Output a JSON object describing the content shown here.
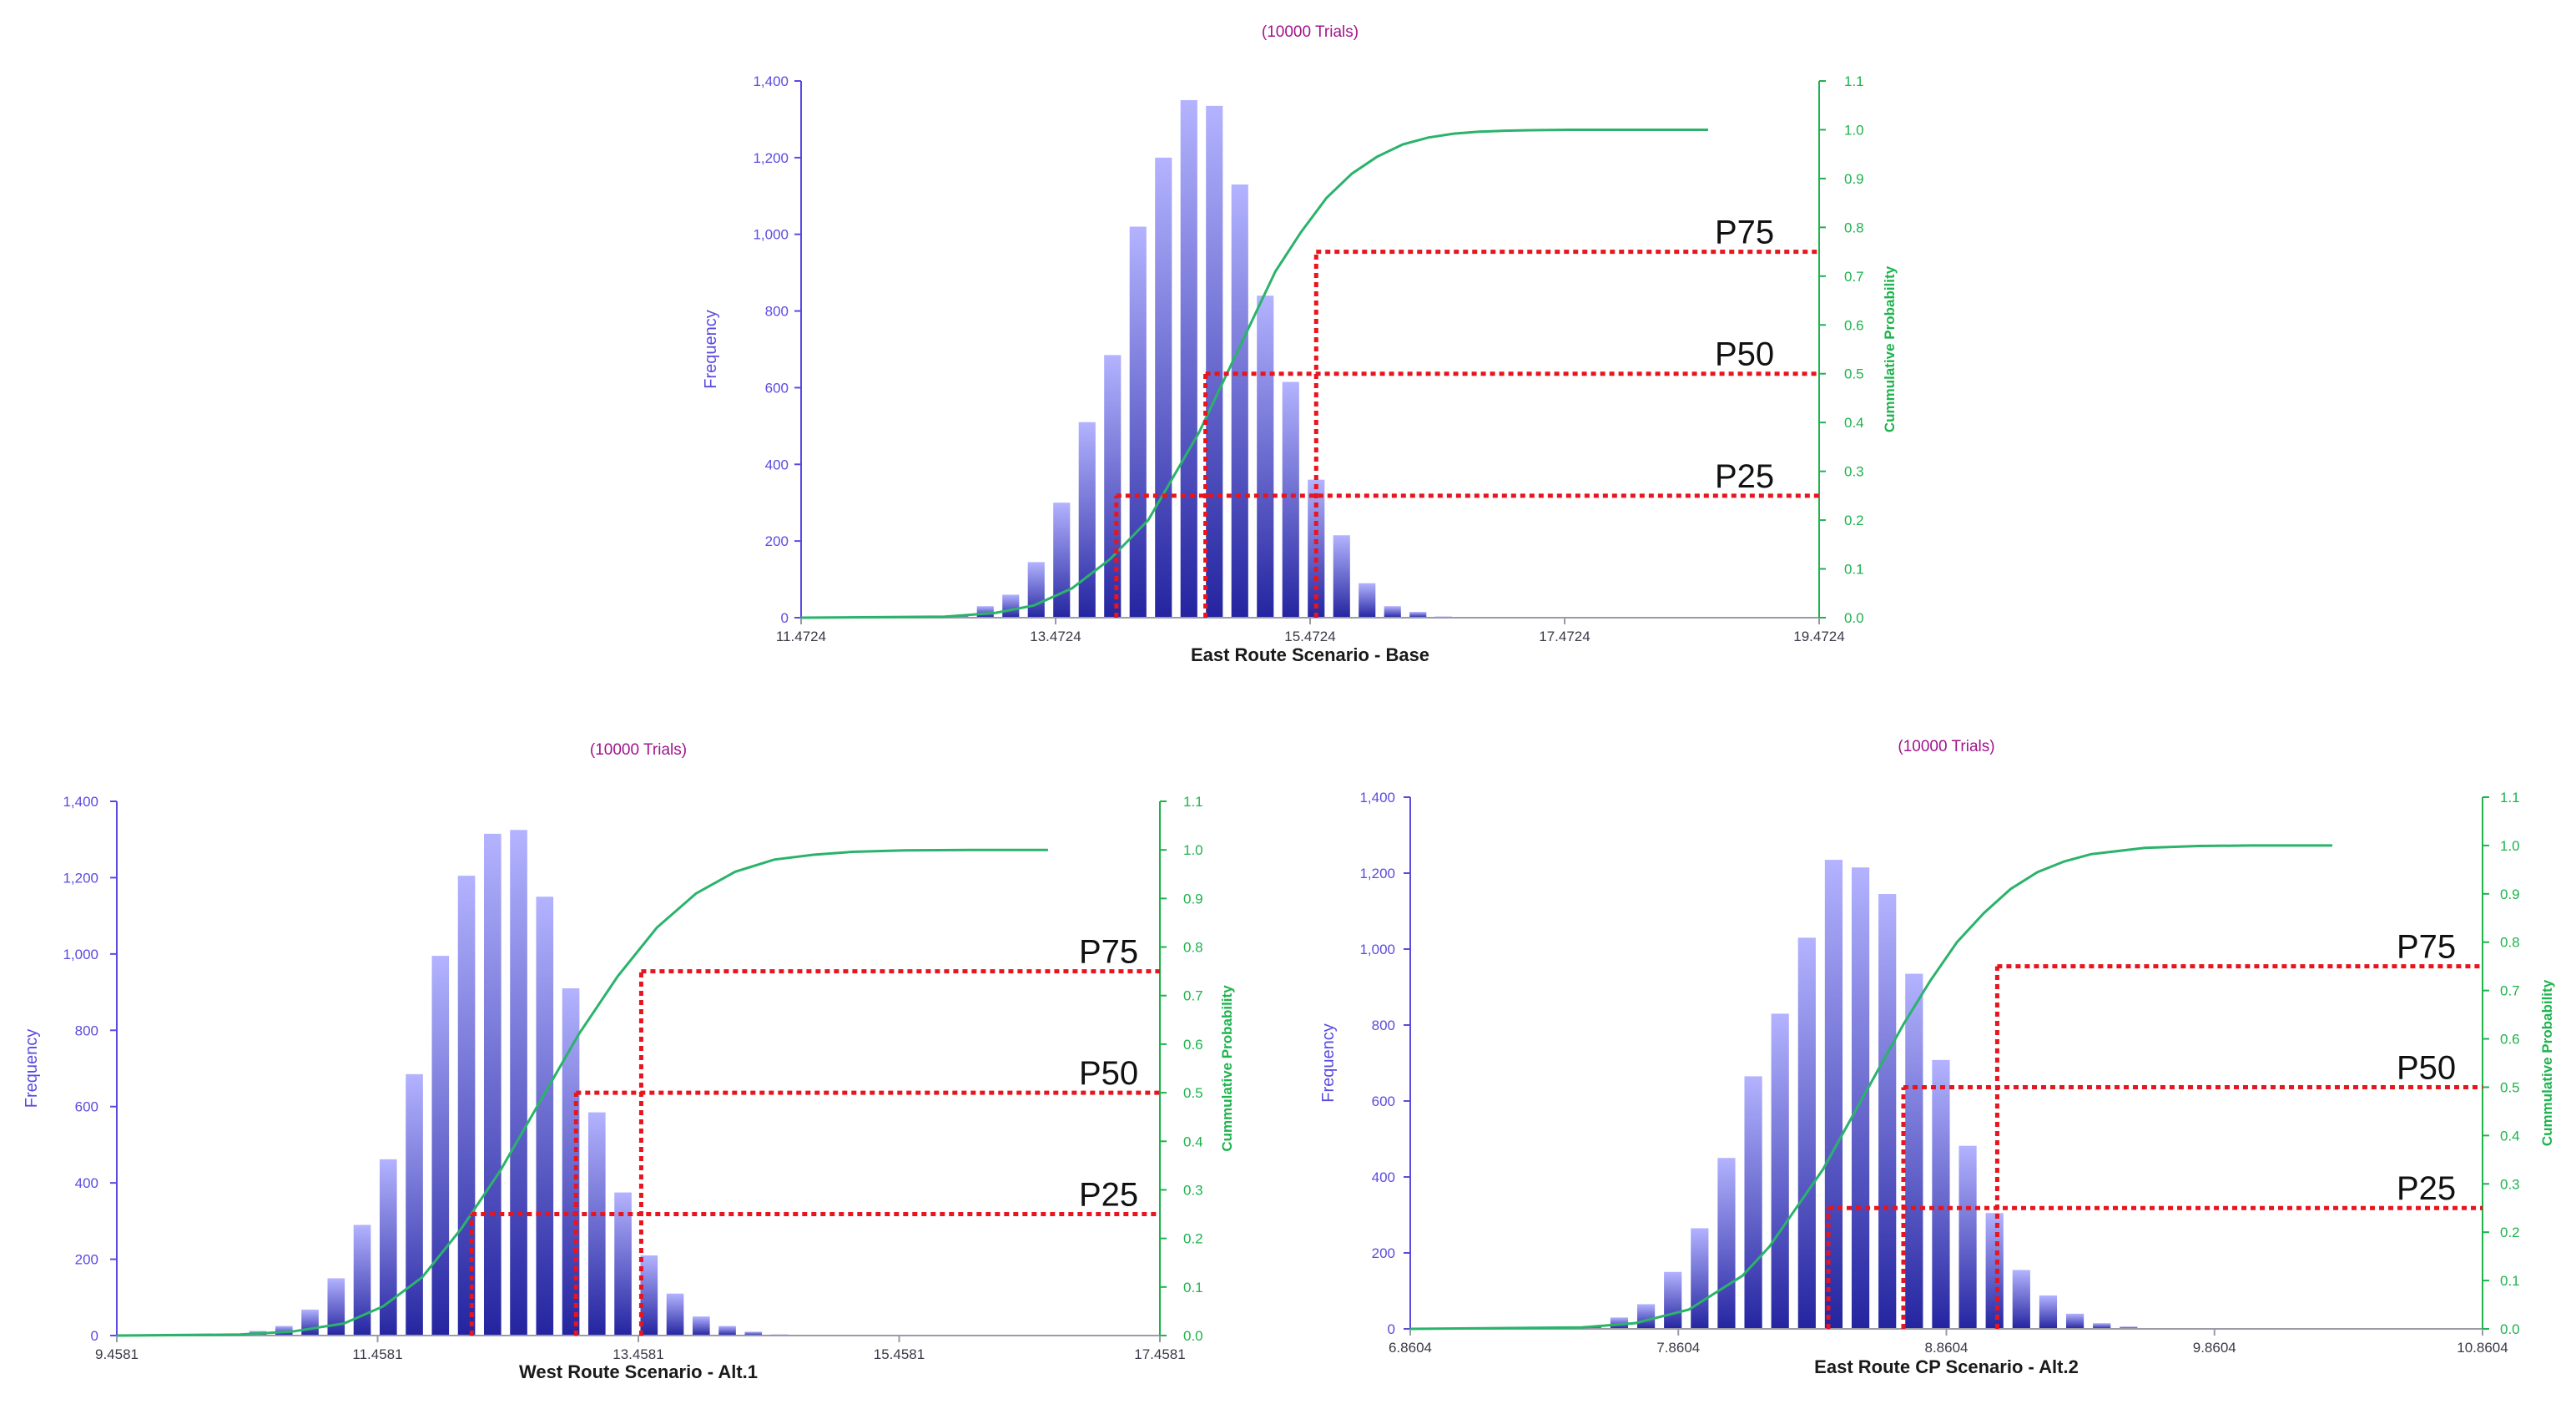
{
  "colors": {
    "bar_light": "#b3b3ff",
    "bar_dark": "#2424a0",
    "cumulative_line": "#2bb36b",
    "left_axis": "#5a4be0",
    "right_axis": "#1db34d",
    "percentile_line": "#e8141e",
    "trials_label": "#a0148c"
  },
  "chart_data": [
    {
      "type": "bar",
      "name": "chart-top",
      "trials_label": "(10000 Trials)",
      "xlabel": "East Route Scenario - Base",
      "ylabel": "Frequency",
      "y2label": "Cummulative Probability",
      "xlim": [
        11.4724,
        19.4724
      ],
      "ylim": [
        0,
        1400
      ],
      "y2lim": [
        0,
        1.1
      ],
      "x_ticks": [
        11.4724,
        13.4724,
        15.4724,
        17.4724,
        19.4724
      ],
      "x_tick_labels": [
        "11.4724",
        "13.4724",
        "15.4724",
        "17.4724",
        "19.4724"
      ],
      "y_ticks": [
        0,
        200,
        400,
        600,
        800,
        1000,
        1200,
        1400
      ],
      "y_tick_labels": [
        "0",
        "200",
        "400",
        "600",
        "800",
        "1,000",
        "1,200",
        "1,400"
      ],
      "y2_ticks": [
        0,
        0.1,
        0.2,
        0.3,
        0.4,
        0.5,
        0.6,
        0.7,
        0.8,
        0.9,
        1.0,
        1.1
      ],
      "y2_tick_labels": [
        "0.0",
        "0.1",
        "0.2",
        "0.3",
        "0.4",
        "0.5",
        "0.6",
        "0.7",
        "0.8",
        "0.9",
        "1.0",
        "1.1"
      ],
      "bin_width": 0.2,
      "bin_centers": [
        12.72,
        12.92,
        13.12,
        13.32,
        13.52,
        13.72,
        13.92,
        14.12,
        14.32,
        14.52,
        14.72,
        14.92,
        15.12,
        15.32,
        15.52,
        15.72,
        15.92,
        16.12,
        16.32,
        16.52,
        16.72,
        16.92,
        17.12,
        17.32
      ],
      "frequencies": [
        5,
        30,
        60,
        145,
        300,
        510,
        685,
        1020,
        1200,
        1350,
        1335,
        1130,
        840,
        615,
        360,
        215,
        90,
        30,
        15,
        3,
        1,
        0,
        0,
        0
      ],
      "cumulative_x": [
        11.4724,
        12.6,
        13.0,
        13.3,
        13.6,
        13.9,
        14.2,
        14.4,
        14.6,
        14.8,
        15.0,
        15.2,
        15.4,
        15.6,
        15.8,
        16.0,
        16.2,
        16.4,
        16.6,
        16.8,
        17.0,
        17.2,
        17.5,
        17.8,
        18.2,
        18.6
      ],
      "cumulative_y": [
        0.0,
        0.002,
        0.01,
        0.025,
        0.06,
        0.12,
        0.2,
        0.29,
        0.38,
        0.49,
        0.6,
        0.71,
        0.79,
        0.86,
        0.91,
        0.945,
        0.97,
        0.984,
        0.992,
        0.996,
        0.998,
        0.999,
        1.0,
        1.0,
        1.0,
        1.0
      ],
      "percentiles": [
        {
          "label": "P75",
          "x": 15.52,
          "y": 0.75
        },
        {
          "label": "P50",
          "x": 14.65,
          "y": 0.5
        },
        {
          "label": "P25",
          "x": 13.95,
          "y": 0.25
        }
      ]
    },
    {
      "type": "bar",
      "name": "chart-bottom-left",
      "trials_label": "(10000 Trials)",
      "xlabel": "West Route Scenario - Alt.1",
      "ylabel": "Frequency",
      "y2label": "Cummulative Probability",
      "xlim": [
        9.4581,
        17.4581
      ],
      "ylim": [
        0,
        1400
      ],
      "y2lim": [
        0,
        1.1
      ],
      "x_ticks": [
        9.4581,
        11.4581,
        13.4581,
        15.4581,
        17.4581
      ],
      "x_tick_labels": [
        "9.4581",
        "11.4581",
        "13.4581",
        "15.4581",
        "17.4581"
      ],
      "y_ticks": [
        0,
        200,
        400,
        600,
        800,
        1000,
        1200,
        1400
      ],
      "y_tick_labels": [
        "0",
        "200",
        "400",
        "600",
        "800",
        "1,000",
        "1,200",
        "1,400"
      ],
      "y2_ticks": [
        0,
        0.1,
        0.2,
        0.3,
        0.4,
        0.5,
        0.6,
        0.7,
        0.8,
        0.9,
        1.0,
        1.1
      ],
      "y2_tick_labels": [
        "0.0",
        "0.1",
        "0.2",
        "0.3",
        "0.4",
        "0.5",
        "0.6",
        "0.7",
        "0.8",
        "0.9",
        "1.0",
        "1.1"
      ],
      "bin_width": 0.2,
      "bin_centers": [
        10.34,
        10.54,
        10.74,
        10.94,
        11.14,
        11.34,
        11.54,
        11.74,
        11.94,
        12.14,
        12.34,
        12.54,
        12.74,
        12.94,
        13.14,
        13.34,
        13.54,
        13.74,
        13.94,
        14.14,
        14.34,
        14.54,
        14.74,
        14.94,
        15.14
      ],
      "frequencies": [
        5,
        12,
        25,
        68,
        150,
        290,
        462,
        685,
        995,
        1205,
        1315,
        1325,
        1150,
        910,
        585,
        375,
        210,
        110,
        50,
        25,
        10,
        3,
        0,
        0,
        0
      ],
      "cumulative_x": [
        9.4581,
        10.4,
        10.8,
        11.2,
        11.5,
        11.8,
        12.1,
        12.4,
        12.7,
        13.0,
        13.3,
        13.6,
        13.9,
        14.2,
        14.5,
        14.8,
        15.1,
        15.5,
        16.0,
        16.6
      ],
      "cumulative_y": [
        0.0,
        0.002,
        0.008,
        0.025,
        0.06,
        0.12,
        0.22,
        0.34,
        0.48,
        0.62,
        0.74,
        0.84,
        0.91,
        0.955,
        0.98,
        0.99,
        0.996,
        0.999,
        1.0,
        1.0
      ],
      "percentiles": [
        {
          "label": "P75",
          "x": 13.48,
          "y": 0.75
        },
        {
          "label": "P50",
          "x": 12.98,
          "y": 0.5
        },
        {
          "label": "P25",
          "x": 12.18,
          "y": 0.25
        }
      ]
    },
    {
      "type": "bar",
      "name": "chart-bottom-right",
      "trials_label": "(10000 Trials)",
      "xlabel": "East Route CP Scenario - Alt.2",
      "ylabel": "Frequency",
      "y2label": "Cummulative Probability",
      "xlim": [
        6.8604,
        10.8604
      ],
      "ylim": [
        0,
        1400
      ],
      "y2lim": [
        0,
        1.1
      ],
      "x_ticks": [
        6.8604,
        7.8604,
        8.8604,
        9.8604,
        10.8604
      ],
      "x_tick_labels": [
        "6.8604",
        "7.8604",
        "8.8604",
        "9.8604",
        "10.8604"
      ],
      "y_ticks": [
        0,
        200,
        400,
        600,
        800,
        1000,
        1200,
        1400
      ],
      "y_tick_labels": [
        "0",
        "200",
        "400",
        "600",
        "800",
        "1,000",
        "1,200",
        "1,400"
      ],
      "y2_ticks": [
        0,
        0.1,
        0.2,
        0.3,
        0.4,
        0.5,
        0.6,
        0.7,
        0.8,
        0.9,
        1.0,
        1.1
      ],
      "y2_tick_labels": [
        "0.0",
        "0.1",
        "0.2",
        "0.3",
        "0.4",
        "0.5",
        "0.6",
        "0.7",
        "0.8",
        "0.9",
        "1.0",
        "1.1"
      ],
      "bin_width": 0.1,
      "bin_centers": [
        7.44,
        7.54,
        7.64,
        7.74,
        7.84,
        7.94,
        8.04,
        8.14,
        8.24,
        8.34,
        8.44,
        8.54,
        8.64,
        8.74,
        8.84,
        8.94,
        9.04,
        9.14,
        9.24,
        9.34,
        9.44,
        9.54,
        9.64,
        9.74,
        9.84,
        9.94,
        10.04
      ],
      "frequencies": [
        4,
        8,
        30,
        65,
        150,
        265,
        450,
        665,
        830,
        1030,
        1235,
        1215,
        1145,
        935,
        708,
        482,
        305,
        155,
        88,
        40,
        15,
        6,
        2,
        0,
        0,
        0,
        0
      ],
      "cumulative_x": [
        6.8604,
        7.5,
        7.7,
        7.9,
        8.1,
        8.2,
        8.3,
        8.4,
        8.5,
        8.6,
        8.7,
        8.8,
        8.9,
        9.0,
        9.1,
        9.2,
        9.3,
        9.4,
        9.6,
        9.8,
        10.0,
        10.3
      ],
      "cumulative_y": [
        0.0,
        0.003,
        0.012,
        0.04,
        0.11,
        0.17,
        0.25,
        0.33,
        0.43,
        0.53,
        0.63,
        0.72,
        0.8,
        0.86,
        0.91,
        0.945,
        0.967,
        0.982,
        0.995,
        0.999,
        1.0,
        1.0
      ],
      "percentiles": [
        {
          "label": "P75",
          "x": 9.05,
          "y": 0.75
        },
        {
          "label": "P50",
          "x": 8.7,
          "y": 0.5
        },
        {
          "label": "P25",
          "x": 8.42,
          "y": 0.25
        }
      ]
    }
  ]
}
